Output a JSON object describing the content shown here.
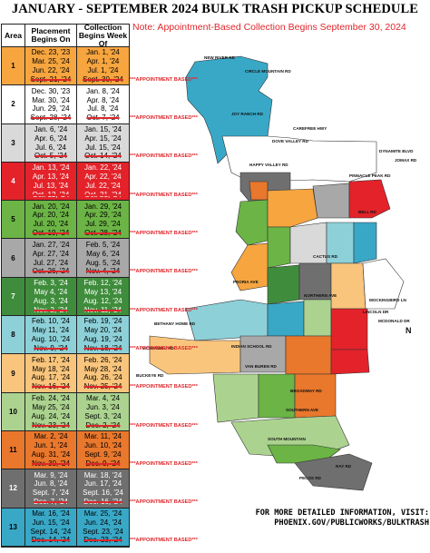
{
  "header": {
    "title": "JANUARY - SEPTEMBER 2024 BULK TRASH PICKUP SCHEDULE",
    "note": "Note: Appointment-Based Collection Begins September 30, 2024"
  },
  "table": {
    "headers": [
      "Area",
      "Placement Begins On",
      "Collection Begins Week Of"
    ],
    "rows": [
      {
        "area": "1",
        "color": "#f6a53f",
        "placement": [
          "Dec. 23, '23",
          "Mar. 25, '24",
          "Jun. 22, '24",
          "Sept. 21, '24"
        ],
        "collection": [
          "Jan. 1, '24",
          "Apr. 1, '24",
          "Jul. 1, '24",
          "Sept. 30, '24"
        ],
        "appointment": "***APPOINTMENT BASED***"
      },
      {
        "area": "2",
        "color": "#ffffff",
        "placement": [
          "Dec. 30, '23",
          "Mar. 30, '24",
          "Jun. 29, '24",
          "Sept. 28, '24"
        ],
        "collection": [
          "Jan. 8, '24",
          "Apr. 8, '24",
          "Jul. 8, '24",
          "Oct. 7, '24"
        ],
        "appointment": "***APPOINTMENT BASED***"
      },
      {
        "area": "3",
        "color": "#d9d9d9",
        "placement": [
          "Jan. 6, '24",
          "Apr. 6, '24",
          "Jul. 6, '24",
          "Oct. 5, '24"
        ],
        "collection": [
          "Jan. 15, '24",
          "Apr. 15, '24",
          "Jul. 15, '24",
          "Oct. 14, '24"
        ],
        "appointment": "***APPOINTMENT BASED***"
      },
      {
        "area": "4",
        "color": "#e3222a",
        "placement": [
          "Jan. 13, '24",
          "Apr. 13, '24",
          "Jul. 13, '24",
          "Oct. 12, '24"
        ],
        "collection": [
          "Jan. 22, '24",
          "Apr. 22, '24",
          "Jul. 22, '24",
          "Oct. 21, '24"
        ],
        "appointment": "***APPOINTMENT BASED***"
      },
      {
        "area": "5",
        "color": "#6bb445",
        "placement": [
          "Jan. 20, '24",
          "Apr. 20, '24",
          "Jul. 20, '24",
          "Oct. 19, '24"
        ],
        "collection": [
          "Jan. 29, '24",
          "Apr. 29, '24",
          "Jul. 29, '24",
          "Oct. 28, '24"
        ],
        "appointment": "***APPOINTMENT BASED***"
      },
      {
        "area": "6",
        "color": "#a8a8a8",
        "placement": [
          "Jan. 27, '24",
          "Apr. 27, '24",
          "Jul. 27, '24",
          "Oct. 26, '24"
        ],
        "collection": [
          "Feb. 5, '24",
          "May 6, '24",
          "Aug. 5, '24",
          "Nov. 4, '24"
        ],
        "appointment": "***APPOINTMENT BASED***"
      },
      {
        "area": "7",
        "color": "#3f8d3c",
        "placement": [
          "Feb. 3, '24",
          "May 4, '24",
          "Aug. 3, '24",
          "Nov. 2, '24"
        ],
        "collection": [
          "Feb. 12, '24",
          "May 13, '24",
          "Aug. 12, '24",
          "Nov. 11, '24"
        ],
        "appointment": "***APPOINTMENT BASED***"
      },
      {
        "area": "8",
        "color": "#8dd0d8",
        "placement": [
          "Feb. 10, '24",
          "May 11, '24",
          "Aug. 10, '24",
          "Nov. 9, '24"
        ],
        "collection": [
          "Feb. 19, '24",
          "May 20, '24",
          "Aug. 19, '24",
          "Nov. 18, '24"
        ],
        "appointment": "***APPOINTMENT BASED***"
      },
      {
        "area": "9",
        "color": "#f9c57c",
        "placement": [
          "Feb. 17, '24",
          "May 18, '24",
          "Aug. 17, '24",
          "Nov. 16, '24"
        ],
        "collection": [
          "Feb. 26, '24",
          "May 28, '24",
          "Aug. 26, '24",
          "Nov. 25, '24"
        ],
        "appointment": "***APPOINTMENT BASED***"
      },
      {
        "area": "10",
        "color": "#abd38f",
        "placement": [
          "Feb. 24, '24",
          "May 25, '24",
          "Aug. 24, '24",
          "Nov. 23, '24"
        ],
        "collection": [
          "Mar. 4, '24",
          "Jun. 3, '24",
          "Sept. 3, '24",
          "Dec. 2, '24"
        ],
        "appointment": "***APPOINTMENT BASED***"
      },
      {
        "area": "11",
        "color": "#e9772c",
        "placement": [
          "Mar. 2, '24",
          "Jun. 1, '24",
          "Aug. 31, '24",
          "Nov. 30, '24"
        ],
        "collection": [
          "Mar. 11, '24",
          "Jun. 10, '24",
          "Sept. 9, '24",
          "Dec. 9, '24"
        ],
        "appointment": "***APPOINTMENT BASED***"
      },
      {
        "area": "12",
        "color": "#6f6f6f",
        "placement": [
          "Mar. 9, '24",
          "Jun. 8, '24",
          "Sept. 7, '24",
          "Dec. 7, '24"
        ],
        "collection": [
          "Mar. 18, '24",
          "Jun. 17, '24",
          "Sept. 16, '24",
          "Dec. 16, '24"
        ],
        "appointment": "***APPOINTMENT BASED***"
      },
      {
        "area": "13",
        "color": "#39a8c7",
        "placement": [
          "Mar. 16, '24",
          "Jun. 15, '24",
          "Sept. 14, '24",
          "Dec. 14, '24"
        ],
        "collection": [
          "Mar. 25, '24",
          "Jun. 24, '24",
          "Sept. 23, '24",
          "Dec. 23, '24"
        ],
        "appointment": "***APPOINTMENT BASED***"
      }
    ]
  },
  "map": {
    "labels": [
      "NEW RIVER RD",
      "CIRCLE MOUNTAIN RD",
      "JOY RANCH RD",
      "CAREFREE HWY",
      "DOVE VALLEY RD",
      "DYNAMITE BLVD",
      "JOMAX RD",
      "HAPPY VALLEY RD",
      "PINNACLE PEAK RD",
      "BELL RD",
      "CACTUS RD",
      "PEORIA AVE",
      "NORTHERN AVE",
      "MOCKINGBIRD LN",
      "LINCOLN DR",
      "MCDONALD DR",
      "BETHANY HOME RD",
      "INDIAN SCHOOL RD",
      "MCDOWELL RD",
      "VAN BUREN RD",
      "BUCKEYE RD",
      "BROADWAY RD",
      "SOUTHERN AVE",
      "SOUTH MOUNTAIN",
      "RAY RD",
      "PECOS RD",
      "N"
    ]
  },
  "footer": [
    "FOR MORE DETAILED INFORMATION, VISIT:",
    "PHOENIX.GOV/PUBLICWORKS/BULKTRASH"
  ]
}
